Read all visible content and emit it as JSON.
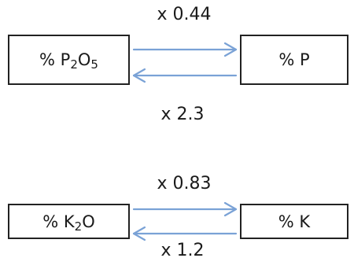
{
  "colors": {
    "arrow": "#7aa2d6",
    "box_border": "#222222",
    "text": "#1a1a1a"
  },
  "conversions": [
    {
      "left": {
        "prefix": "% P",
        "sub1": "2",
        "mid": "O",
        "sub2": "5"
      },
      "right": "% P",
      "forward_factor": "x 0.44",
      "reverse_factor": "x 2.3"
    },
    {
      "left": {
        "prefix": "% K",
        "sub1": "2",
        "mid": "O",
        "sub2": ""
      },
      "right": "% K",
      "forward_factor": "x 0.83",
      "reverse_factor": "x 1.2"
    }
  ]
}
